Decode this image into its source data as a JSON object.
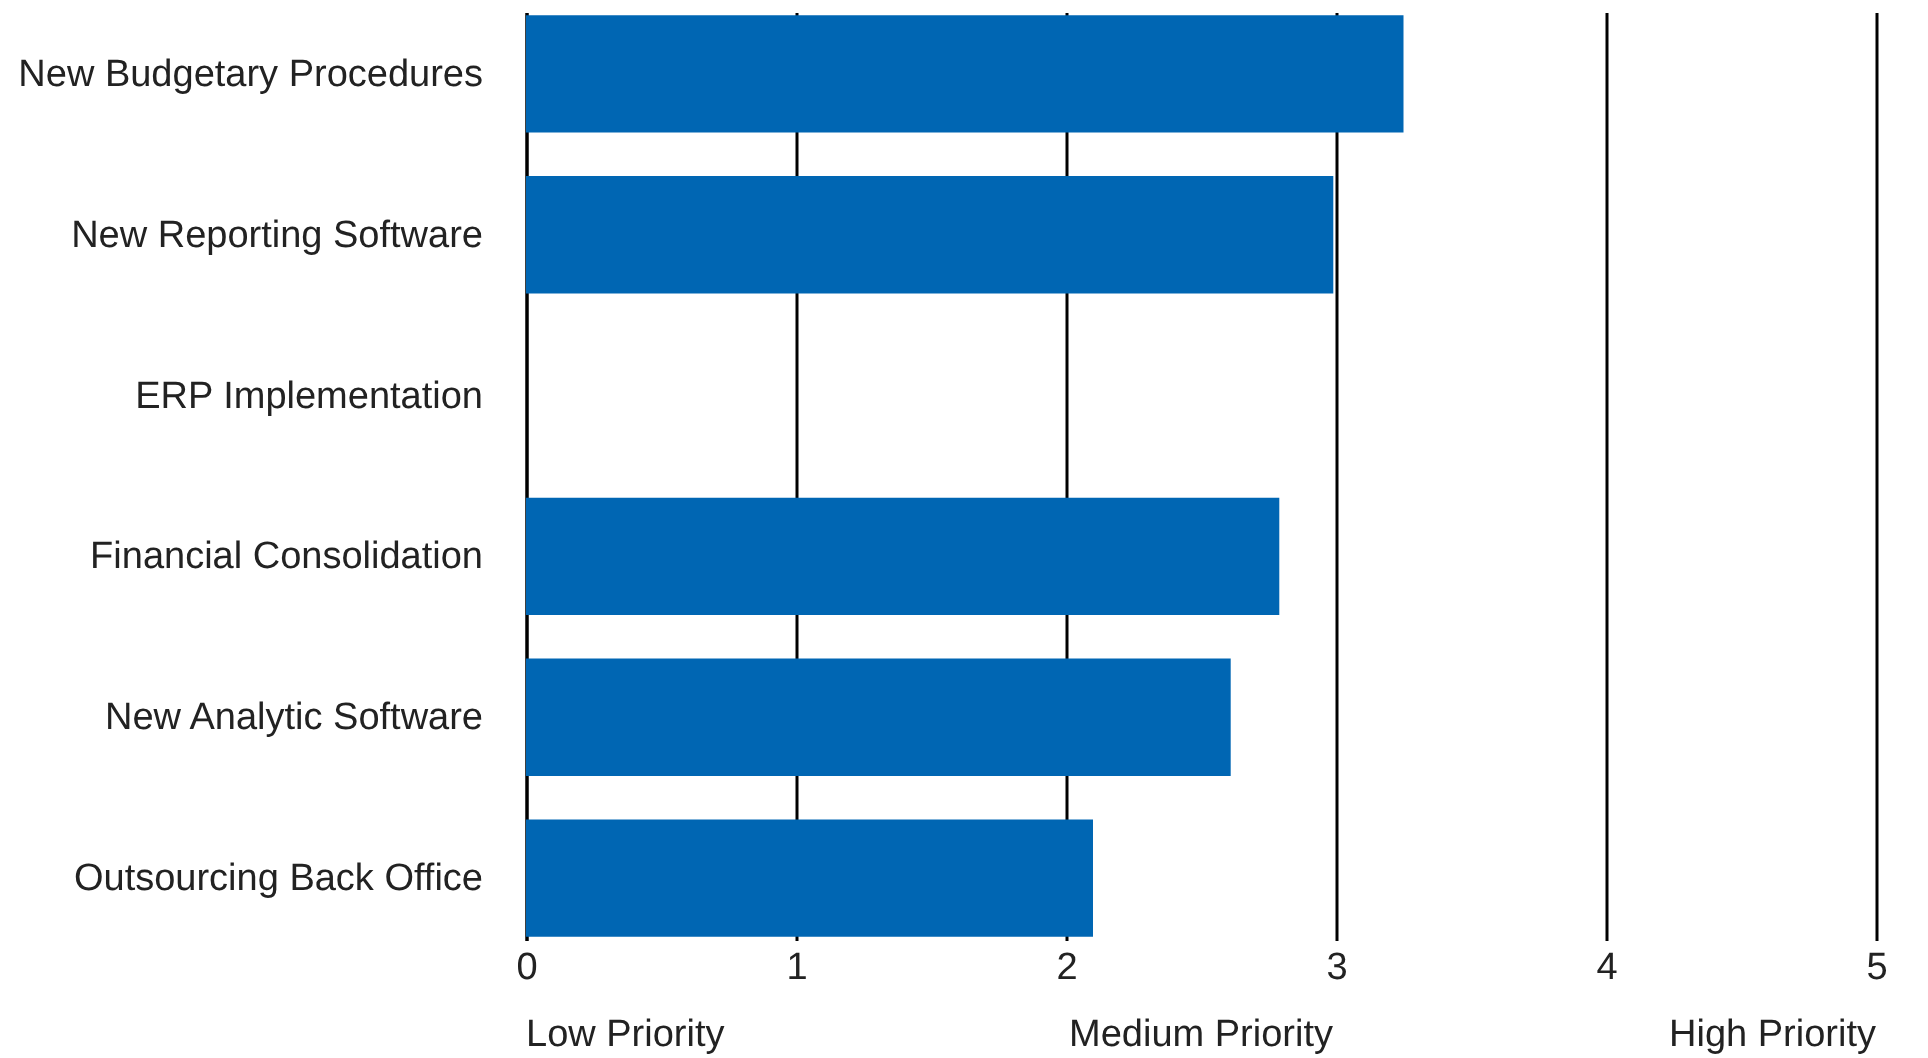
{
  "chart_data": {
    "type": "bar",
    "orientation": "horizontal",
    "categories": [
      "New Budgetary Procedures",
      "New Reporting Software",
      "ERP Implementation",
      "Financial Consolidation",
      "New Analytic Software",
      "Outsourcing Back Office"
    ],
    "values": [
      3.25,
      2.99,
      null,
      2.79,
      2.61,
      2.1
    ],
    "color": "#0066b3",
    "xlim": [
      0,
      5
    ],
    "xticks": [
      0,
      1,
      2,
      3,
      4,
      5
    ],
    "grid": "x",
    "annotations": [
      "Low Priority",
      "Medium Priority",
      "High Priority"
    ]
  }
}
